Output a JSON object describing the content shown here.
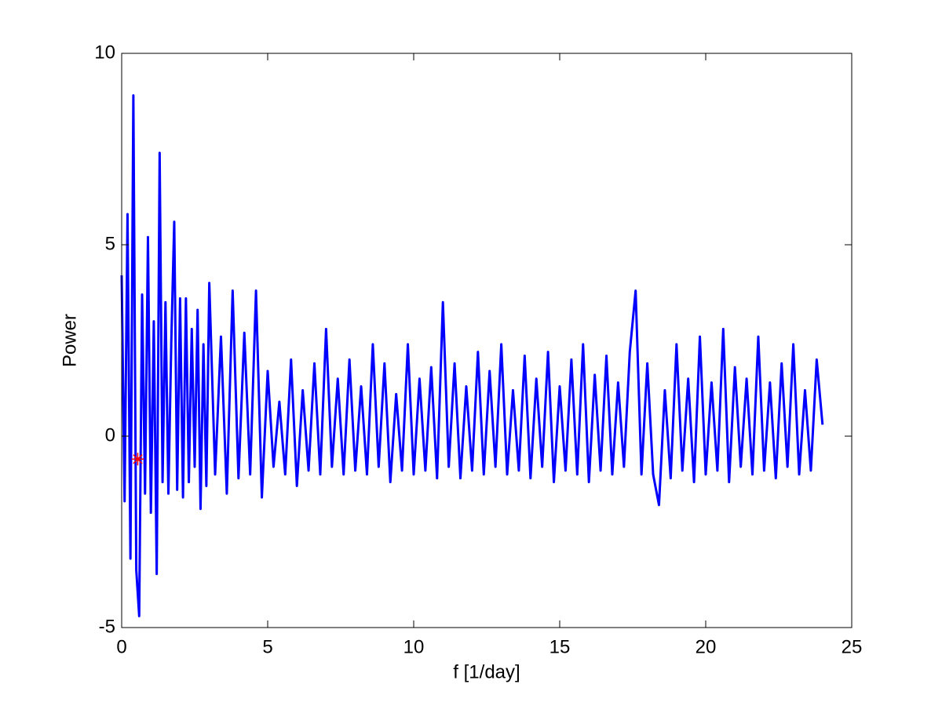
{
  "chart_data": {
    "type": "line",
    "x_label": "f [1/day]",
    "y_label": "Power",
    "xlim": [
      0,
      25
    ],
    "xticks": [
      0,
      5,
      10,
      15,
      20,
      25
    ],
    "ylim": [
      -5,
      10
    ],
    "yticks": [
      -5,
      0,
      5,
      10
    ],
    "grid": false,
    "series": [
      {
        "color": "#0000ff",
        "x": [
          0,
          0.1,
          0.2,
          0.3,
          0.4,
          0.5,
          0.6,
          0.7,
          0.8,
          0.9,
          1.0,
          1.1,
          1.2,
          1.3,
          1.4,
          1.5,
          1.6,
          1.7,
          1.8,
          1.9,
          2.0,
          2.1,
          2.2,
          2.3,
          2.4,
          2.5,
          2.6,
          2.7,
          2.8,
          2.9,
          3.0,
          3.2,
          3.4,
          3.6,
          3.8,
          4.0,
          4.2,
          4.4,
          4.6,
          4.8,
          5.0,
          5.2,
          5.4,
          5.6,
          5.8,
          6.0,
          6.2,
          6.4,
          6.6,
          6.8,
          7.0,
          7.2,
          7.4,
          7.6,
          7.8,
          8.0,
          8.2,
          8.4,
          8.6,
          8.8,
          9.0,
          9.2,
          9.4,
          9.6,
          9.8,
          10.0,
          10.2,
          10.4,
          10.6,
          10.8,
          11.0,
          11.2,
          11.4,
          11.6,
          11.8,
          12.0,
          12.2,
          12.4,
          12.6,
          12.8,
          13.0,
          13.2,
          13.4,
          13.6,
          13.8,
          14.0,
          14.2,
          14.4,
          14.6,
          14.8,
          15.0,
          15.2,
          15.4,
          15.6,
          15.8,
          16.0,
          16.2,
          16.4,
          16.6,
          16.8,
          17.0,
          17.2,
          17.4,
          17.6,
          17.8,
          18.0,
          18.2,
          18.4,
          18.6,
          18.8,
          19.0,
          19.2,
          19.4,
          19.6,
          19.8,
          20.0,
          20.2,
          20.4,
          20.6,
          20.8,
          21.0,
          21.2,
          21.4,
          21.6,
          21.8,
          22.0,
          22.2,
          22.4,
          22.6,
          22.8,
          23.0,
          23.2,
          23.4,
          23.6,
          23.8,
          24.0
        ],
        "values": [
          4.2,
          -1.7,
          5.8,
          -3.2,
          8.9,
          -3.5,
          -4.7,
          3.7,
          -1.5,
          5.2,
          -2.0,
          3.0,
          -3.6,
          7.4,
          -1.2,
          3.5,
          -1.5,
          2.5,
          5.6,
          -1.4,
          3.6,
          -1.6,
          3.6,
          -1.2,
          2.8,
          -0.8,
          3.3,
          -1.9,
          2.4,
          -1.3,
          4.0,
          -1.0,
          2.6,
          -1.5,
          3.8,
          -1.1,
          2.7,
          -1.0,
          3.8,
          -1.6,
          1.7,
          -0.8,
          0.9,
          -1.0,
          2.0,
          -1.3,
          1.2,
          -0.9,
          1.9,
          -1.0,
          2.8,
          -0.8,
          1.5,
          -1.0,
          2.0,
          -0.9,
          1.3,
          -1.0,
          2.4,
          -0.8,
          1.9,
          -1.2,
          1.1,
          -0.9,
          2.4,
          -1.0,
          1.5,
          -0.9,
          1.8,
          -1.1,
          3.5,
          -0.8,
          1.9,
          -1.1,
          1.3,
          -0.9,
          2.2,
          -1.0,
          1.7,
          -0.8,
          2.4,
          -1.0,
          1.2,
          -0.9,
          2.1,
          -1.1,
          1.5,
          -0.8,
          2.2,
          -1.2,
          1.3,
          -0.9,
          2.0,
          -1.0,
          2.4,
          -1.2,
          1.6,
          -0.9,
          2.1,
          -1.0,
          1.4,
          -0.8,
          2.2,
          3.8,
          -1.0,
          1.9,
          -1.0,
          -1.8,
          1.2,
          -1.1,
          2.4,
          -0.9,
          1.5,
          -1.2,
          2.6,
          -1.0,
          1.4,
          -0.9,
          2.8,
          -1.2,
          1.8,
          -0.8,
          1.5,
          -1.0,
          2.6,
          -0.9,
          1.4,
          -1.1,
          1.9,
          -0.8,
          2.4,
          -1.0,
          1.2,
          -0.9,
          2.0,
          0.3
        ]
      }
    ],
    "marker": {
      "x": 0.55,
      "y": -0.6,
      "color": "#ff0000"
    }
  }
}
